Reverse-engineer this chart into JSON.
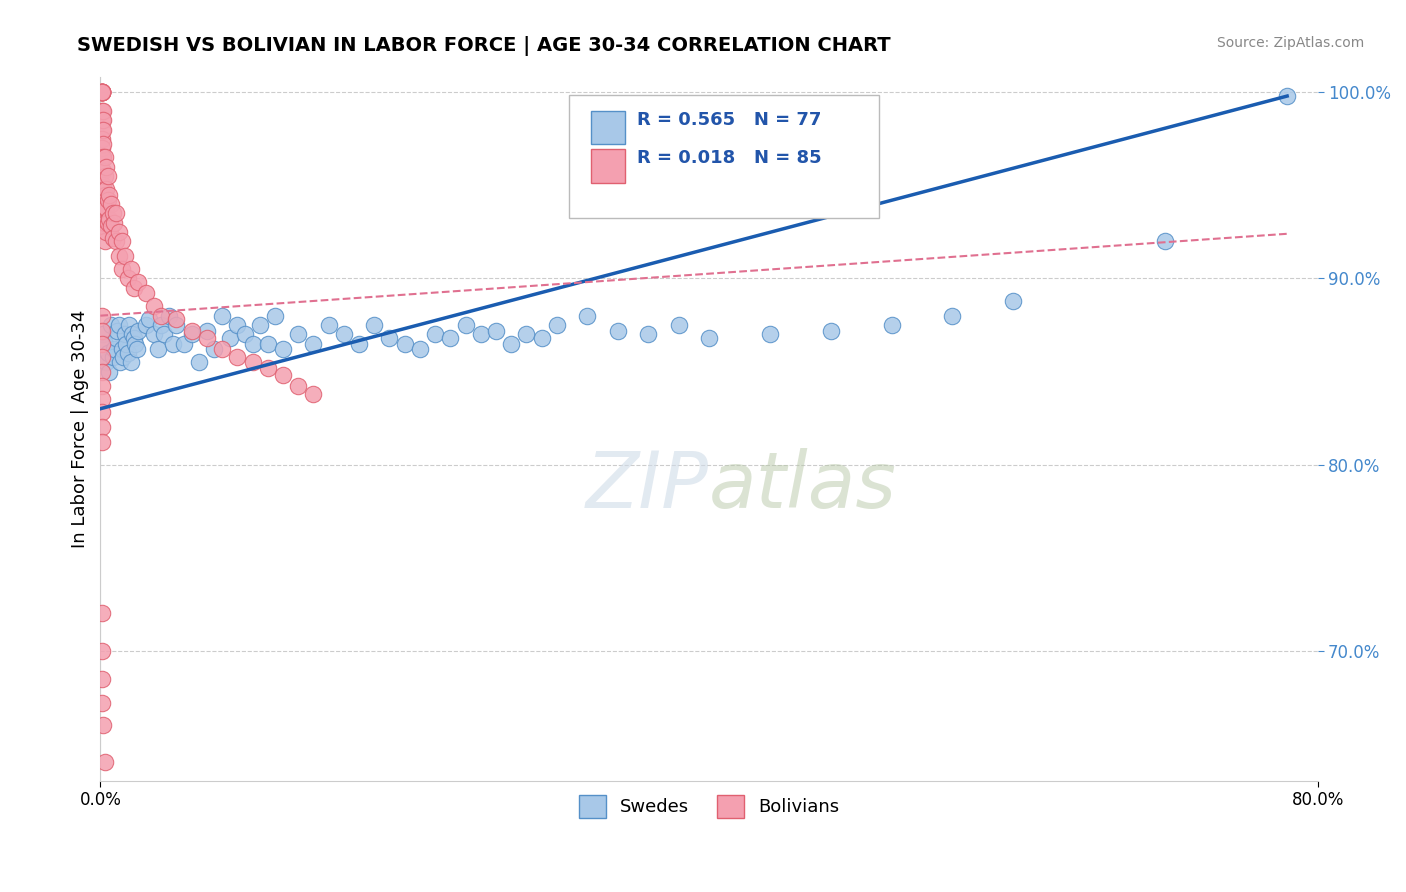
{
  "title": "SWEDISH VS BOLIVIAN IN LABOR FORCE | AGE 30-34 CORRELATION CHART",
  "source": "Source: ZipAtlas.com",
  "ylabel": "In Labor Force | Age 30-34",
  "xlim": [
    0.0,
    0.8
  ],
  "ylim": [
    0.63,
    1.008
  ],
  "y_ticks": [
    0.7,
    0.8,
    0.9,
    1.0
  ],
  "y_tick_labels": [
    "70.0%",
    "80.0%",
    "90.0%",
    "100.0%"
  ],
  "swedish_R": 0.565,
  "swedish_N": 77,
  "bolivian_R": 0.018,
  "bolivian_N": 85,
  "blue_color": "#a8c8e8",
  "blue_edge_color": "#5590c8",
  "pink_color": "#f4a0b0",
  "pink_edge_color": "#e06070",
  "blue_line_color": "#1a5cb0",
  "pink_line_color": "#e07090",
  "watermark_color": "#d0dce8",
  "grid_color": "#cccccc",
  "sw_x": [
    0.002,
    0.003,
    0.004,
    0.005,
    0.006,
    0.007,
    0.008,
    0.009,
    0.01,
    0.011,
    0.012,
    0.013,
    0.014,
    0.015,
    0.016,
    0.017,
    0.018,
    0.019,
    0.02,
    0.021,
    0.022,
    0.023,
    0.024,
    0.025,
    0.03,
    0.032,
    0.035,
    0.038,
    0.04,
    0.042,
    0.045,
    0.048,
    0.05,
    0.055,
    0.06,
    0.065,
    0.07,
    0.075,
    0.08,
    0.085,
    0.09,
    0.095,
    0.1,
    0.105,
    0.11,
    0.115,
    0.12,
    0.13,
    0.14,
    0.15,
    0.16,
    0.17,
    0.18,
    0.19,
    0.2,
    0.21,
    0.22,
    0.23,
    0.24,
    0.25,
    0.26,
    0.27,
    0.28,
    0.29,
    0.3,
    0.32,
    0.34,
    0.36,
    0.38,
    0.4,
    0.44,
    0.48,
    0.52,
    0.56,
    0.6,
    0.7,
    0.78
  ],
  "sw_y": [
    0.87,
    0.865,
    0.855,
    0.86,
    0.85,
    0.875,
    0.858,
    0.862,
    0.868,
    0.872,
    0.875,
    0.855,
    0.862,
    0.858,
    0.87,
    0.865,
    0.86,
    0.875,
    0.855,
    0.87,
    0.868,
    0.865,
    0.862,
    0.872,
    0.875,
    0.878,
    0.87,
    0.862,
    0.875,
    0.87,
    0.88,
    0.865,
    0.875,
    0.865,
    0.87,
    0.855,
    0.872,
    0.862,
    0.88,
    0.868,
    0.875,
    0.87,
    0.865,
    0.875,
    0.865,
    0.88,
    0.862,
    0.87,
    0.865,
    0.875,
    0.87,
    0.865,
    0.875,
    0.868,
    0.865,
    0.862,
    0.87,
    0.868,
    0.875,
    0.87,
    0.872,
    0.865,
    0.87,
    0.868,
    0.875,
    0.88,
    0.872,
    0.87,
    0.875,
    0.868,
    0.87,
    0.872,
    0.875,
    0.88,
    0.888,
    0.92,
    0.998
  ],
  "bo_x": [
    0.001,
    0.001,
    0.001,
    0.001,
    0.001,
    0.001,
    0.001,
    0.001,
    0.001,
    0.001,
    0.001,
    0.001,
    0.001,
    0.001,
    0.001,
    0.002,
    0.002,
    0.002,
    0.002,
    0.002,
    0.002,
    0.002,
    0.002,
    0.002,
    0.002,
    0.003,
    0.003,
    0.003,
    0.003,
    0.003,
    0.003,
    0.004,
    0.004,
    0.004,
    0.004,
    0.005,
    0.005,
    0.005,
    0.006,
    0.006,
    0.007,
    0.007,
    0.008,
    0.008,
    0.009,
    0.01,
    0.01,
    0.012,
    0.012,
    0.014,
    0.014,
    0.016,
    0.018,
    0.02,
    0.022,
    0.025,
    0.03,
    0.035,
    0.04,
    0.05,
    0.06,
    0.07,
    0.08,
    0.09,
    0.1,
    0.11,
    0.12,
    0.13,
    0.14,
    0.001,
    0.001,
    0.001,
    0.001,
    0.001,
    0.001,
    0.001,
    0.001,
    0.001,
    0.001,
    0.001,
    0.001,
    0.001,
    0.001,
    0.002,
    0.003
  ],
  "bo_y": [
    1.0,
    1.0,
    1.0,
    1.0,
    1.0,
    1.0,
    1.0,
    1.0,
    1.0,
    0.99,
    0.985,
    0.98,
    0.975,
    0.97,
    0.965,
    0.99,
    0.985,
    0.98,
    0.972,
    0.965,
    0.958,
    0.95,
    0.942,
    0.935,
    0.928,
    0.965,
    0.955,
    0.945,
    0.938,
    0.93,
    0.92,
    0.96,
    0.948,
    0.938,
    0.925,
    0.955,
    0.942,
    0.93,
    0.945,
    0.932,
    0.94,
    0.928,
    0.935,
    0.922,
    0.93,
    0.935,
    0.92,
    0.925,
    0.912,
    0.92,
    0.905,
    0.912,
    0.9,
    0.905,
    0.895,
    0.898,
    0.892,
    0.885,
    0.88,
    0.878,
    0.872,
    0.868,
    0.862,
    0.858,
    0.855,
    0.852,
    0.848,
    0.842,
    0.838,
    0.88,
    0.872,
    0.865,
    0.858,
    0.85,
    0.842,
    0.835,
    0.828,
    0.82,
    0.812,
    0.72,
    0.7,
    0.685,
    0.672,
    0.66,
    0.64
  ],
  "sw_trend_x": [
    0.0,
    0.78
  ],
  "sw_trend_y": [
    0.83,
    0.998
  ],
  "bo_trend_x": [
    0.0,
    0.78
  ],
  "bo_trend_y": [
    0.88,
    0.924
  ]
}
